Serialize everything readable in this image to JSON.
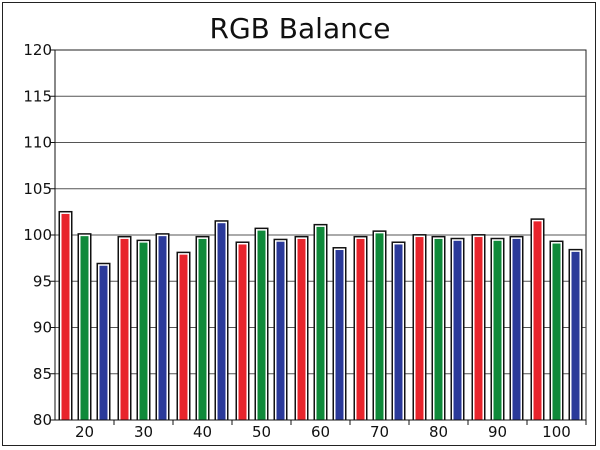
{
  "chart_data": {
    "type": "bar",
    "title": "RGB Balance",
    "xlabel": "",
    "ylabel": "",
    "ylim": [
      80,
      120
    ],
    "yticks": [
      "120",
      "115",
      "110",
      "105",
      "100",
      "95",
      "90",
      "85",
      "80"
    ],
    "categories": [
      "20",
      "30",
      "40",
      "50",
      "60",
      "70",
      "80",
      "90",
      "100"
    ],
    "series": [
      {
        "values": [
          102.6,
          99.9,
          98.2,
          99.3,
          99.9,
          99.9,
          100.1,
          100.1,
          101.8
        ]
      },
      {
        "values": [
          100.2,
          99.5,
          99.9,
          100.8,
          101.2,
          100.5,
          99.9,
          99.7,
          99.4
        ]
      },
      {
        "values": [
          97.0,
          100.2,
          101.6,
          99.6,
          98.7,
          99.3,
          99.7,
          99.9,
          98.5
        ]
      }
    ],
    "colors": {
      "red": "#e8242c",
      "green": "#0f8a3a",
      "blue": "#2b3a9a",
      "grid": "#555555",
      "plot_bg": "#ffffff"
    },
    "grid": true,
    "legend": "none"
  }
}
